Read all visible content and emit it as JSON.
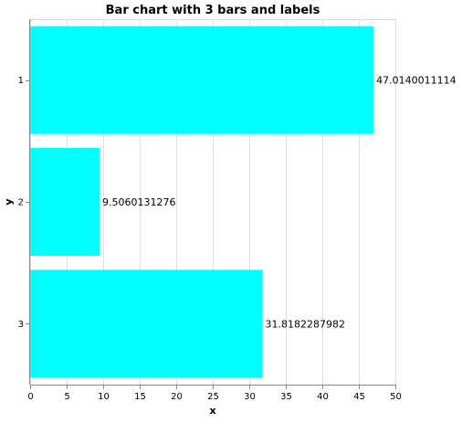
{
  "chart_data": {
    "type": "bar",
    "orientation": "horizontal",
    "title": "Bar chart with 3 bars and labels",
    "xlabel": "x",
    "ylabel": "y",
    "categories": [
      "1",
      "2",
      "3"
    ],
    "values": [
      47.0140011114,
      9.5060131276,
      31.8182287982
    ],
    "value_labels": [
      "47.0140011114",
      "9.5060131276",
      "31.8182287982"
    ],
    "xlim": [
      0,
      50
    ],
    "x_ticks": [
      0,
      5,
      10,
      15,
      20,
      25,
      30,
      35,
      40,
      45,
      50
    ],
    "grid": true,
    "bar_color": "#00ffff"
  }
}
